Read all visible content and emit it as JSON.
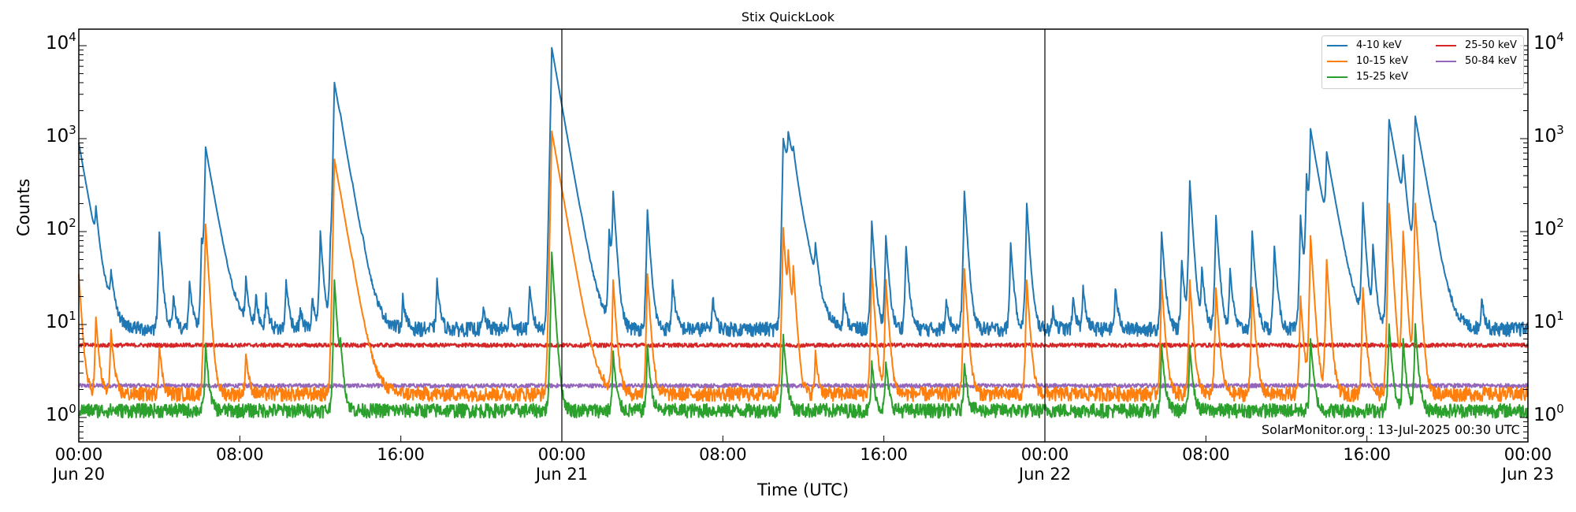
{
  "title": "Stix QuickLook",
  "ylabel": "Counts",
  "xlabel": "Time (UTC)",
  "credit": "SolarMonitor.org : 13-Jul-2025 00:30 UTC",
  "yticks": [
    {
      "base": "10",
      "exp": "4",
      "value": 10000
    },
    {
      "base": "10",
      "exp": "3",
      "value": 1000
    },
    {
      "base": "10",
      "exp": "2",
      "value": 100
    },
    {
      "base": "10",
      "exp": "1",
      "value": 10
    },
    {
      "base": "10",
      "exp": "0",
      "value": 1
    }
  ],
  "xticks": [
    {
      "time": "00:00",
      "date": "Jun 20",
      "hour": 0
    },
    {
      "time": "08:00",
      "date": "",
      "hour": 8
    },
    {
      "time": "16:00",
      "date": "",
      "hour": 16
    },
    {
      "time": "00:00",
      "date": "Jun 21",
      "hour": 24
    },
    {
      "time": "08:00",
      "date": "",
      "hour": 32
    },
    {
      "time": "16:00",
      "date": "",
      "hour": 40
    },
    {
      "time": "00:00",
      "date": "Jun 22",
      "hour": 48
    },
    {
      "time": "08:00",
      "date": "",
      "hour": 56
    },
    {
      "time": "16:00",
      "date": "",
      "hour": 64
    },
    {
      "time": "00:00",
      "date": "Jun 23",
      "hour": 72
    }
  ],
  "legend": [
    {
      "label": "4-10 keV",
      "color": "#1f77b4"
    },
    {
      "label": "10-15 keV",
      "color": "#ff7f0e"
    },
    {
      "label": "15-25 keV",
      "color": "#2ca02c"
    },
    {
      "label": "25-50 keV",
      "color": "#d62728"
    },
    {
      "label": "50-84 keV",
      "color": "#9467bd"
    }
  ],
  "chart_data": {
    "type": "line",
    "title": "Stix QuickLook",
    "xlabel": "Time (UTC)",
    "ylabel": "Counts",
    "yscale": "log",
    "ylim": [
      0.55,
      15000
    ],
    "xlim_hours": [
      0,
      72
    ],
    "x_start": "Jun 20 00:00",
    "day_boundaries_hours": [
      24,
      48
    ],
    "legend_position": "upper right",
    "series": [
      {
        "name": "4-10 keV",
        "color": "#1f77b4",
        "baseline": 9,
        "peaks": [
          [
            0.0,
            900
          ],
          [
            0.85,
            110
          ],
          [
            1.6,
            30
          ],
          [
            4.0,
            100
          ],
          [
            4.7,
            20
          ],
          [
            5.5,
            30
          ],
          [
            6.1,
            80
          ],
          [
            6.3,
            800
          ],
          [
            8.3,
            30
          ],
          [
            8.8,
            20
          ],
          [
            9.3,
            20
          ],
          [
            10.3,
            30
          ],
          [
            11.0,
            15
          ],
          [
            11.6,
            20
          ],
          [
            12.0,
            100
          ],
          [
            12.5,
            60
          ],
          [
            12.7,
            4000
          ],
          [
            13.0,
            170
          ],
          [
            13.6,
            30
          ],
          [
            14.1,
            20
          ],
          [
            16.1,
            20
          ],
          [
            17.8,
            30
          ],
          [
            20.1,
            15
          ],
          [
            21.4,
            15
          ],
          [
            22.4,
            25
          ],
          [
            23.5,
            9500
          ],
          [
            25.0,
            15
          ],
          [
            26.35,
            100
          ],
          [
            26.55,
            250
          ],
          [
            28.25,
            170
          ],
          [
            29.5,
            30
          ],
          [
            31.5,
            20
          ],
          [
            35.0,
            1000
          ],
          [
            35.25,
            700
          ],
          [
            35.5,
            250
          ],
          [
            36.6,
            50
          ],
          [
            38.0,
            20
          ],
          [
            39.4,
            130
          ],
          [
            40.1,
            90
          ],
          [
            41.1,
            70
          ],
          [
            43.1,
            20
          ],
          [
            44.0,
            270
          ],
          [
            46.3,
            75
          ],
          [
            47.1,
            200
          ],
          [
            48.4,
            15
          ],
          [
            49.4,
            20
          ],
          [
            49.9,
            25
          ],
          [
            51.5,
            25
          ],
          [
            53.8,
            100
          ],
          [
            54.8,
            50
          ],
          [
            55.2,
            350
          ],
          [
            55.8,
            40
          ],
          [
            56.5,
            150
          ],
          [
            57.2,
            40
          ],
          [
            58.3,
            100
          ],
          [
            59.4,
            70
          ],
          [
            60.7,
            150
          ],
          [
            61.0,
            400
          ],
          [
            61.2,
            1200
          ],
          [
            62.0,
            600
          ],
          [
            63.8,
            200
          ],
          [
            64.3,
            70
          ],
          [
            65.1,
            1600
          ],
          [
            65.8,
            450
          ],
          [
            66.4,
            1700
          ],
          [
            67.4,
            30
          ],
          [
            69.7,
            20
          ]
        ]
      },
      {
        "name": "10-15 keV",
        "color": "#ff7f0e",
        "baseline": 1.8,
        "peaks": [
          [
            0.0,
            35
          ],
          [
            0.85,
            12
          ],
          [
            1.6,
            9
          ],
          [
            4.0,
            6
          ],
          [
            6.3,
            120
          ],
          [
            8.3,
            5
          ],
          [
            12.7,
            600
          ],
          [
            13.0,
            10
          ],
          [
            13.6,
            5
          ],
          [
            23.5,
            1200
          ],
          [
            26.55,
            30
          ],
          [
            28.25,
            35
          ],
          [
            35.0,
            110
          ],
          [
            35.25,
            50
          ],
          [
            35.5,
            35
          ],
          [
            36.6,
            5
          ],
          [
            39.4,
            40
          ],
          [
            40.1,
            30
          ],
          [
            44.0,
            40
          ],
          [
            47.1,
            30
          ],
          [
            53.8,
            30
          ],
          [
            55.2,
            30
          ],
          [
            56.5,
            25
          ],
          [
            58.3,
            25
          ],
          [
            60.7,
            20
          ],
          [
            61.2,
            90
          ],
          [
            62.0,
            50
          ],
          [
            63.8,
            25
          ],
          [
            65.1,
            200
          ],
          [
            65.8,
            100
          ],
          [
            66.4,
            200
          ]
        ]
      },
      {
        "name": "15-25 keV",
        "color": "#2ca02c",
        "baseline": 1.2,
        "peaks": [
          [
            6.3,
            6
          ],
          [
            12.7,
            30
          ],
          [
            13.0,
            5
          ],
          [
            23.5,
            60
          ],
          [
            26.55,
            5
          ],
          [
            28.25,
            6
          ],
          [
            35.0,
            8
          ],
          [
            39.4,
            4
          ],
          [
            40.1,
            4
          ],
          [
            44.0,
            4
          ],
          [
            53.8,
            6
          ],
          [
            55.2,
            6
          ],
          [
            61.2,
            7
          ],
          [
            65.1,
            10
          ],
          [
            65.8,
            7
          ],
          [
            66.4,
            10
          ]
        ]
      },
      {
        "name": "25-50 keV",
        "color": "#d62728",
        "baseline": 6.0,
        "peaks": []
      },
      {
        "name": "50-84 keV",
        "color": "#9467bd",
        "baseline": 2.2,
        "peaks": []
      }
    ]
  }
}
